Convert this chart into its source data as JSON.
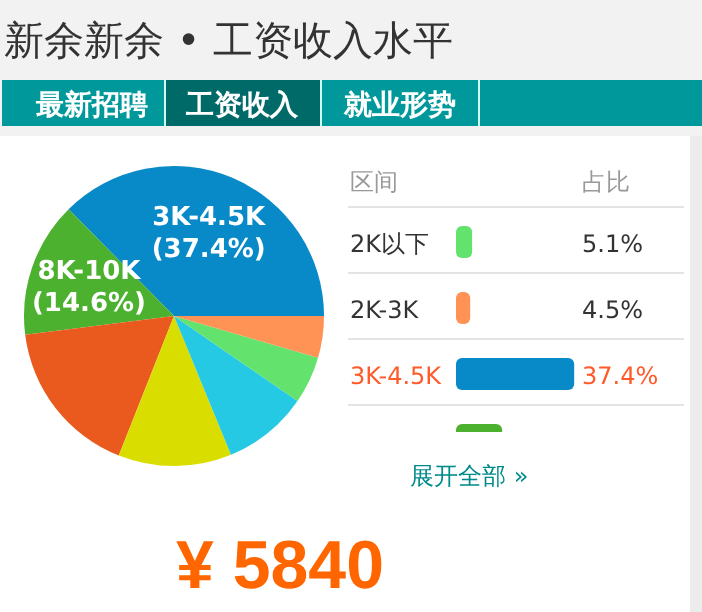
{
  "chart_data": {
    "type": "pie",
    "title": "新余新余 • 工资收入水平",
    "categories": [
      "3K-4.5K",
      "8K-10K",
      null,
      null,
      null,
      "2K以下",
      "2K-3K"
    ],
    "values": [
      37.4,
      14.6,
      17.0,
      12.2,
      9.2,
      5.1,
      4.5
    ],
    "value_labels": [
      "37.4%",
      null,
      null,
      null,
      null,
      "5.1%",
      "4.5%"
    ],
    "legend": "right",
    "colors": [
      "#088ac8",
      "#4cb12f",
      "#ea5a1e",
      "#d9de00",
      "#25c9e3",
      "#63e26d",
      "#ff9355"
    ],
    "legend_title": "区间",
    "annotations": [
      "最新招聘",
      "工资收入",
      "就业形势",
      "占比",
      "展开全部 »",
      "¥ 5840",
      {
        "text": "(37.4%)",
        "x": "3K-4.5K"
      },
      {
        "text": "(14.6%)",
        "x": "8K-10K"
      }
    ]
  }
}
